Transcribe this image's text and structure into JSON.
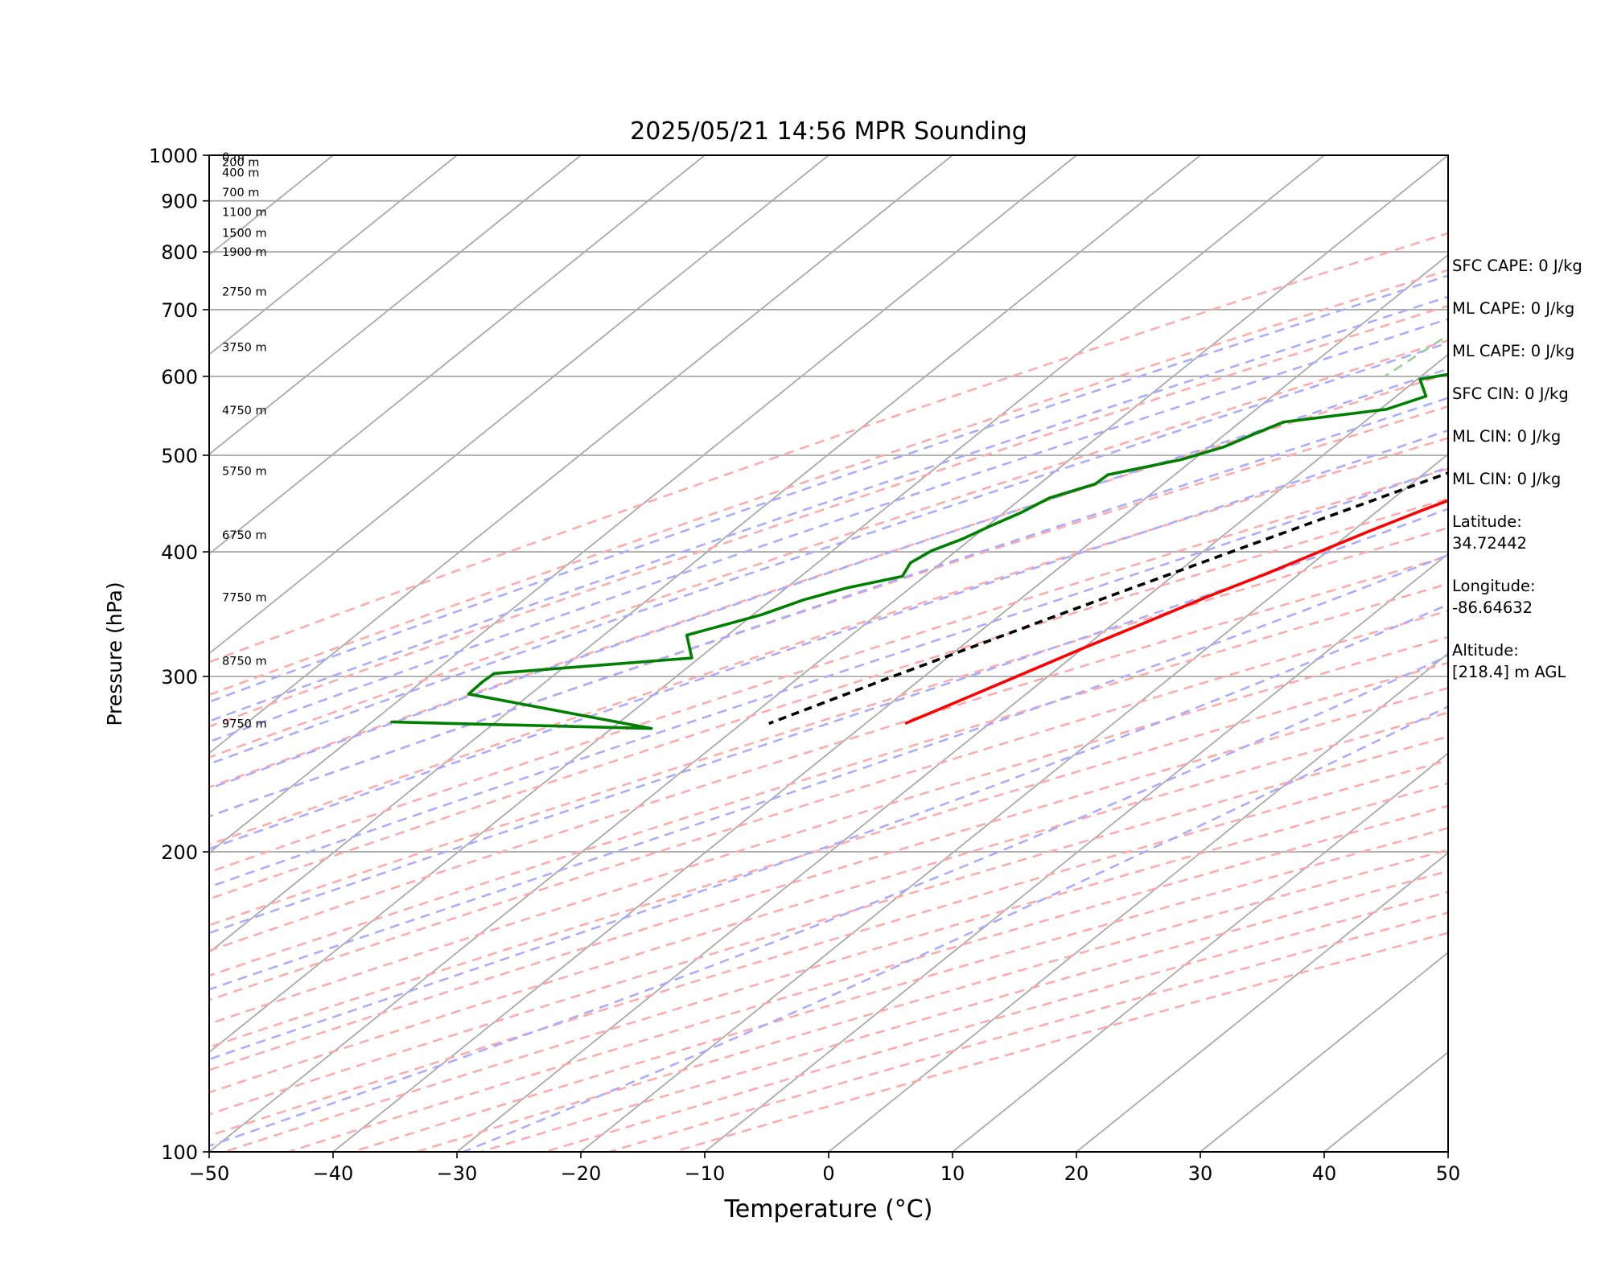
{
  "chart_data": {
    "type": "line",
    "title": "2025/05/21 14:56 MPR Sounding",
    "xlabel": "Temperature (°C)",
    "ylabel": "Pressure (hPa)",
    "xlim": [
      -50,
      50
    ],
    "ylim": [
      1000,
      100
    ],
    "y_scale": "log",
    "grid": true,
    "x_ticks": [
      "−50",
      "−40",
      "−30",
      "−20",
      "−10",
      "0",
      "10",
      "20",
      "30",
      "40",
      "50"
    ],
    "y_ticks": [
      "100",
      "200",
      "300",
      "400",
      "500",
      "600",
      "700",
      "800",
      "900",
      "1000"
    ],
    "height_labels": [
      {
        "pressure": 996,
        "label": "0 m"
      },
      {
        "pressure": 984,
        "label": "200 m"
      },
      {
        "pressure": 961,
        "label": "400 m"
      },
      {
        "pressure": 918,
        "label": "700 m"
      },
      {
        "pressure": 877,
        "label": "1100 m"
      },
      {
        "pressure": 836,
        "label": "1500 m"
      },
      {
        "pressure": 800,
        "label": "1900 m"
      },
      {
        "pressure": 730,
        "label": "2750 m"
      },
      {
        "pressure": 642,
        "label": "3750 m"
      },
      {
        "pressure": 555,
        "label": "4750 m"
      },
      {
        "pressure": 482,
        "label": "5750 m"
      },
      {
        "pressure": 416,
        "label": "6750 m"
      },
      {
        "pressure": 360,
        "label": "7750 m"
      },
      {
        "pressure": 311,
        "label": "8750 m"
      },
      {
        "pressure": 269,
        "label": "9750 m"
      }
    ],
    "series": [
      {
        "role": "temperature",
        "color": "#ff0000",
        "points": [
          {
            "p": 1000,
            "t": 19.8
          },
          {
            "p": 980,
            "t": 18.0
          },
          {
            "p": 960,
            "t": 16.0
          },
          {
            "p": 940,
            "t": 14.6
          },
          {
            "p": 920,
            "t": 13.9
          },
          {
            "p": 900,
            "t": 13.4
          },
          {
            "p": 880,
            "t": 13.0
          },
          {
            "p": 860,
            "t": 12.5
          },
          {
            "p": 840,
            "t": 12.0
          },
          {
            "p": 820,
            "t": 11.8
          },
          {
            "p": 800,
            "t": 11.3
          },
          {
            "p": 780,
            "t": 10.7
          },
          {
            "p": 760,
            "t": 9.7
          },
          {
            "p": 740,
            "t": 8.8
          },
          {
            "p": 720,
            "t": 7.6
          },
          {
            "p": 700,
            "t": 6.8
          },
          {
            "p": 680,
            "t": 5.5
          },
          {
            "p": 660,
            "t": 4.2
          },
          {
            "p": 640,
            "t": 2.6
          },
          {
            "p": 620,
            "t": 0.8
          },
          {
            "p": 600,
            "t": -0.6
          },
          {
            "p": 580,
            "t": -2.6
          },
          {
            "p": 560,
            "t": -4.6
          },
          {
            "p": 540,
            "t": -6.3
          },
          {
            "p": 520,
            "t": -8.3
          },
          {
            "p": 500,
            "t": -10.3
          },
          {
            "p": 480,
            "t": -12.3
          },
          {
            "p": 460,
            "t": -14.3
          },
          {
            "p": 440,
            "t": -16.5
          },
          {
            "p": 420,
            "t": -18.6
          },
          {
            "p": 400,
            "t": -20.6
          },
          {
            "p": 380,
            "t": -22.7
          },
          {
            "p": 360,
            "t": -25.2
          },
          {
            "p": 340,
            "t": -27.5
          },
          {
            "p": 320,
            "t": -30.0
          },
          {
            "p": 300,
            "t": -32.5
          },
          {
            "p": 280,
            "t": -35.2
          },
          {
            "p": 269,
            "t": -36.8
          }
        ]
      },
      {
        "role": "dewpoint",
        "color": "#008000",
        "points": [
          {
            "p": 994,
            "t": 13.5
          },
          {
            "p": 990,
            "t": 11.5
          },
          {
            "p": 980,
            "t": 9.4
          },
          {
            "p": 960,
            "t": 6.5
          },
          {
            "p": 940,
            "t": 3.4
          },
          {
            "p": 920,
            "t": 1.0
          },
          {
            "p": 900,
            "t": -1.9
          },
          {
            "p": 860,
            "t": -9.0
          },
          {
            "p": 840,
            "t": -11.0
          },
          {
            "p": 820,
            "t": -14.0
          },
          {
            "p": 800,
            "t": -19.7
          },
          {
            "p": 790,
            "t": -21.2
          },
          {
            "p": 785,
            "t": -21.1
          },
          {
            "p": 763,
            "t": -26.5
          },
          {
            "p": 735,
            "t": -20.7
          },
          {
            "p": 717,
            "t": -21.9
          },
          {
            "p": 700,
            "t": -22.6
          },
          {
            "p": 685,
            "t": -21.3
          },
          {
            "p": 660,
            "t": -23.0
          },
          {
            "p": 647,
            "t": -24.0
          },
          {
            "p": 620,
            "t": -23.7
          },
          {
            "p": 596,
            "t": -29.8
          },
          {
            "p": 573,
            "t": -27.6
          },
          {
            "p": 556,
            "t": -29.5
          },
          {
            "p": 540,
            "t": -36.5
          },
          {
            "p": 525,
            "t": -37.7
          },
          {
            "p": 510,
            "t": -38.8
          },
          {
            "p": 495,
            "t": -41.0
          },
          {
            "p": 478,
            "t": -45.4
          },
          {
            "p": 468,
            "t": -45.5
          },
          {
            "p": 453,
            "t": -47.8
          },
          {
            "p": 438,
            "t": -48.6
          },
          {
            "p": 425,
            "t": -49.7
          },
          {
            "p": 412,
            "t": -50.7
          },
          {
            "p": 401,
            "t": -52.0
          },
          {
            "p": 390,
            "t": -52.5
          },
          {
            "p": 378,
            "t": -51.8
          },
          {
            "p": 368,
            "t": -55.1
          },
          {
            "p": 358,
            "t": -57.4
          },
          {
            "p": 346,
            "t": -59.3
          },
          {
            "p": 330,
            "t": -63.3
          },
          {
            "p": 313,
            "t": -60.6
          },
          {
            "p": 302,
            "t": -75.0
          },
          {
            "p": 296,
            "t": -75.1
          },
          {
            "p": 288,
            "t": -75.0
          },
          {
            "p": 266,
            "t": -56.8
          },
          {
            "p": 270,
            "t": -78.5
          }
        ]
      },
      {
        "role": "parcel-profile",
        "color": "#000000",
        "style": "dashed",
        "points": [
          {
            "p": 1000,
            "t": 19.8
          },
          {
            "p": 980,
            "t": 18.0
          },
          {
            "p": 960,
            "t": 16.2
          },
          {
            "p": 940,
            "t": 14.4
          },
          {
            "p": 920,
            "t": 12.7
          },
          {
            "p": 900,
            "t": 11.2
          },
          {
            "p": 880,
            "t": 10.1
          },
          {
            "p": 860,
            "t": 9.1
          },
          {
            "p": 840,
            "t": 8.0
          },
          {
            "p": 820,
            "t": 6.9
          },
          {
            "p": 800,
            "t": 5.8
          },
          {
            "p": 750,
            "t": 3.0
          },
          {
            "p": 700,
            "t": 0.0
          },
          {
            "p": 650,
            "t": -3.3
          },
          {
            "p": 600,
            "t": -7.0
          },
          {
            "p": 550,
            "t": -11.2
          },
          {
            "p": 500,
            "t": -16.0
          },
          {
            "p": 450,
            "t": -21.5
          },
          {
            "p": 400,
            "t": -27.7
          },
          {
            "p": 350,
            "t": -34.7
          },
          {
            "p": 300,
            "t": -42.5
          },
          {
            "p": 269,
            "t": -47.8
          }
        ]
      }
    ],
    "reference_lines": {
      "isotherm_color": "#aaaaaa",
      "dry_adiabat_color": "#ffaaaa",
      "moist_adiabat_color": "#aaaaff",
      "mixing_ratio_color": "#99cc99"
    }
  },
  "side_panel": [
    {
      "text": "SFC CAPE: 0 J/kg"
    },
    {
      "text": "ML CAPE: 0 J/kg"
    },
    {
      "text": "ML CAPE: 0 J/kg"
    },
    {
      "text": "SFC CIN: 0 J/kg"
    },
    {
      "text": "ML CIN: 0 J/kg"
    },
    {
      "text": "ML CIN: 0 J/kg"
    },
    {
      "text": "Latitude:\n34.72442"
    },
    {
      "text": "Longitude:\n-86.64632"
    },
    {
      "text": "Altitude:\n[218.4] m AGL"
    }
  ]
}
